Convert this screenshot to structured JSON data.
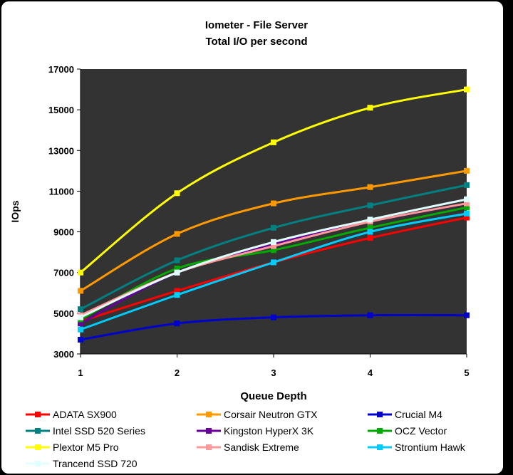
{
  "chart_data": {
    "type": "line",
    "title": "Iometer - File Server",
    "subtitle": "Total I/O per second",
    "xlabel": "Queue Depth",
    "ylabel": "IOps",
    "x": [
      1,
      2,
      3,
      4,
      5
    ],
    "ylim": [
      3000,
      17000
    ],
    "yticks": [
      3000,
      5000,
      7000,
      9000,
      11000,
      13000,
      15000,
      17000
    ],
    "grid": false,
    "legend_position": "bottom",
    "plot_background": "#333333",
    "series": [
      {
        "name": "ADATA SX900",
        "color": "#ff0000",
        "values": [
          4600,
          6100,
          7500,
          8700,
          9700
        ]
      },
      {
        "name": "Corsair Neutron GTX",
        "color": "#ff9900",
        "values": [
          6100,
          8900,
          10400,
          11200,
          12000
        ]
      },
      {
        "name": "Crucial M4",
        "color": "#0000cc",
        "values": [
          3700,
          4500,
          4800,
          4900,
          4900
        ]
      },
      {
        "name": "Intel SSD 520 Series",
        "color": "#008080",
        "values": [
          5200,
          7600,
          9200,
          10300,
          11300
        ]
      },
      {
        "name": "Kingston HyperX 3K",
        "color": "#660099",
        "values": [
          4500,
          7000,
          8400,
          9500,
          10400
        ]
      },
      {
        "name": "OCZ Vector",
        "color": "#00aa00",
        "values": [
          4700,
          7200,
          8100,
          9200,
          10200
        ]
      },
      {
        "name": "Plextor M5 Pro",
        "color": "#ffff00",
        "values": [
          7000,
          10900,
          13400,
          15100,
          16000
        ]
      },
      {
        "name": "Sandisk Extreme",
        "color": "#ff9999",
        "values": [
          4900,
          7000,
          8300,
          9500,
          10400
        ]
      },
      {
        "name": "Strontium Hawk",
        "color": "#00ccff",
        "values": [
          4200,
          5900,
          7500,
          9000,
          9900
        ]
      },
      {
        "name": "Trancend SSD 720",
        "color": "#e0ffff",
        "values": [
          4800,
          7000,
          8500,
          9600,
          10600
        ]
      }
    ]
  }
}
